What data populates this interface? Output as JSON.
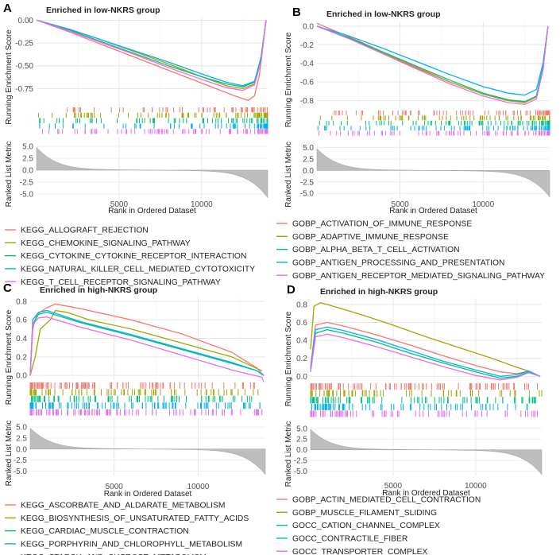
{
  "figure": {
    "x_axis_label": "Rank in Ordered Dataset",
    "es_axis_label": "Running Enrichment Score",
    "metric_axis_label": "Ranked List Metric",
    "metric_ticks": [
      "5.0",
      "2.5",
      "0.0",
      "-2.5",
      "-5.0"
    ],
    "x_ticks": [
      "5000",
      "10000"
    ]
  },
  "panels": [
    {
      "letter": "A",
      "title": "Enriched in low-NKRS group",
      "es_ticks": [
        "0.00",
        "-0.25",
        "-0.50",
        "-0.75"
      ],
      "legend": [
        {
          "label": "KEGG_ALLOGRAFT_REJECTION",
          "color": "#F8766D"
        },
        {
          "label": "KEGG_CHEMOKINE_SIGNALING_PATHWAY",
          "color": "#A3A500"
        },
        {
          "label": "KEGG_CYTOKINE_CYTOKINE_RECEPTOR_INTERACTION",
          "color": "#00BF7D"
        },
        {
          "label": "KEGG_NATURAL_KILLER_CELL_MEDIATED_CYTOTOXICITY",
          "color": "#00B0F6"
        },
        {
          "label": "KEGG_T_CELL_RECEPTOR_SIGNALING_PATHWAY",
          "color": "#E76BF3"
        }
      ]
    },
    {
      "letter": "B",
      "title": "Enriched in low-NKRS group",
      "es_ticks": [
        "0.0",
        "-0.2",
        "-0.4",
        "-0.6",
        "-0.8"
      ],
      "legend": [
        {
          "label": "GOBP_ACTIVATION_OF_IMMUNE_RESPONSE",
          "color": "#F8766D"
        },
        {
          "label": "GOBP_ADAPTIVE_IMMUNE_RESPONSE",
          "color": "#A3A500"
        },
        {
          "label": "GOBP_ALPHA_BETA_T_CELL_ACTIVATION",
          "color": "#00BF7D"
        },
        {
          "label": "GOBP_ANTIGEN_PROCESSING_AND_PRESENTATION",
          "color": "#00B0F6"
        },
        {
          "label": "GOBP_ANTIGEN_RECEPTOR_MEDIATED_SIGNALING_PATHWAY",
          "color": "#E76BF3"
        }
      ]
    },
    {
      "letter": "C",
      "title": "Enriched in high-NKRS group",
      "es_ticks": [
        "0.8",
        "0.6",
        "0.4",
        "0.2",
        "0.0"
      ],
      "legend": [
        {
          "label": "KEGG_ASCORBATE_AND_ALDARATE_METABOLISM",
          "color": "#F8766D"
        },
        {
          "label": "KEGG_BIOSYNTHESIS_OF_UNSATURATED_FATTY_ACIDS",
          "color": "#A3A500"
        },
        {
          "label": "KEGG_CARDIAC_MUSCLE_CONTRACTION",
          "color": "#00BF7D"
        },
        {
          "label": "KEGG_PORPHYRIN_AND_CHLOROPHYLL_METABOLISM",
          "color": "#00B0F6"
        },
        {
          "label": "KEGG_STARCH_AND_SUCROSE_METABOLISM",
          "color": "#E76BF3"
        }
      ]
    },
    {
      "letter": "D",
      "title": "Enriched in high-NKRS group",
      "es_ticks": [
        "0.8",
        "0.6",
        "0.4",
        "0.2",
        "0.0"
      ],
      "legend": [
        {
          "label": "GOBP_ACTIN_MEDIATED_CELL_CONTRACTION",
          "color": "#F8766D"
        },
        {
          "label": "GOBP_MUSCLE_FILAMENT_SLIDING",
          "color": "#A3A500"
        },
        {
          "label": "GOCC_CATION_CHANNEL_COMPLEX",
          "color": "#00BF7D"
        },
        {
          "label": "GOCC_CONTRACTILE_FIBER",
          "color": "#00B0F6"
        },
        {
          "label": "GOCC_TRANSPORTER_COMPLEX",
          "color": "#E76BF3"
        }
      ]
    }
  ],
  "chart_data": [
    {
      "type": "line",
      "panel": "A",
      "title": "Enriched in low-NKRS group",
      "xlabel": "Rank in Ordered Dataset",
      "ylabel": "Running Enrichment Score",
      "xlim": [
        0,
        14000
      ],
      "ylim": [
        -0.93,
        0.03
      ],
      "metric_ylim": [
        -6,
        7
      ],
      "series": [
        {
          "name": "KEGG_ALLOGRAFT_REJECTION",
          "x": [
            0,
            2000,
            4000,
            6000,
            8000,
            10000,
            12000,
            12800,
            13200,
            13500,
            13700,
            13900
          ],
          "y": [
            0,
            -0.13,
            -0.27,
            -0.41,
            -0.55,
            -0.69,
            -0.83,
            -0.88,
            -0.83,
            -0.6,
            -0.3,
            0
          ]
        },
        {
          "name": "KEGG_CHEMOKINE_SIGNALING_PATHWAY",
          "x": [
            0,
            2000,
            4000,
            6000,
            8000,
            10000,
            11500,
            12500,
            13200,
            13600,
            13900
          ],
          "y": [
            0,
            -0.1,
            -0.22,
            -0.35,
            -0.48,
            -0.62,
            -0.72,
            -0.75,
            -0.7,
            -0.45,
            0
          ]
        },
        {
          "name": "KEGG_CYTOKINE_CYTOKINE_RECEPTOR_INTERACTION",
          "x": [
            0,
            2000,
            4000,
            6000,
            8000,
            10000,
            11500,
            12500,
            13200,
            13600,
            13900
          ],
          "y": [
            0,
            -0.11,
            -0.24,
            -0.37,
            -0.5,
            -0.62,
            -0.7,
            -0.73,
            -0.68,
            -0.4,
            0
          ]
        },
        {
          "name": "KEGG_NATURAL_KILLER_CELL_MEDIATED_CYTOTOXICITY",
          "x": [
            0,
            2000,
            4000,
            6000,
            8000,
            10000,
            11500,
            12500,
            13200,
            13600,
            13900
          ],
          "y": [
            0,
            -0.1,
            -0.22,
            -0.34,
            -0.46,
            -0.59,
            -0.68,
            -0.72,
            -0.67,
            -0.42,
            0
          ]
        },
        {
          "name": "KEGG_T_CELL_RECEPTOR_SIGNALING_PATHWAY",
          "x": [
            0,
            2000,
            4000,
            6000,
            8000,
            10000,
            11500,
            12500,
            13200,
            13600,
            13900
          ],
          "y": [
            0,
            -0.12,
            -0.25,
            -0.38,
            -0.52,
            -0.65,
            -0.74,
            -0.77,
            -0.71,
            -0.45,
            0
          ]
        }
      ]
    },
    {
      "type": "line",
      "panel": "B",
      "title": "Enriched in low-NKRS group",
      "xlabel": "Rank in Ordered Dataset",
      "ylabel": "Running Enrichment Score",
      "xlim": [
        0,
        14000
      ],
      "ylim": [
        -0.88,
        0.05
      ],
      "metric_ylim": [
        -6,
        7
      ],
      "series": [
        {
          "name": "GOBP_ACTIVATION_OF_IMMUNE_RESPONSE",
          "x": [
            0,
            2000,
            4000,
            6000,
            8000,
            10000,
            11500,
            12500,
            13200,
            13600,
            13900
          ],
          "y": [
            0.03,
            -0.12,
            -0.28,
            -0.44,
            -0.6,
            -0.73,
            -0.8,
            -0.82,
            -0.75,
            -0.45,
            0
          ]
        },
        {
          "name": "GOBP_ADAPTIVE_IMMUNE_RESPONSE",
          "x": [
            0,
            2000,
            4000,
            6000,
            8000,
            10000,
            11500,
            12500,
            13200,
            13600,
            13900
          ],
          "y": [
            0,
            -0.14,
            -0.29,
            -0.45,
            -0.6,
            -0.73,
            -0.8,
            -0.82,
            -0.76,
            -0.46,
            0
          ]
        },
        {
          "name": "GOBP_ALPHA_BETA_T_CELL_ACTIVATION",
          "x": [
            0,
            2000,
            4000,
            6000,
            8000,
            10000,
            11500,
            12500,
            13200,
            13600,
            13900
          ],
          "y": [
            0,
            -0.13,
            -0.28,
            -0.43,
            -0.58,
            -0.72,
            -0.79,
            -0.81,
            -0.75,
            -0.44,
            0
          ]
        },
        {
          "name": "GOBP_ANTIGEN_PROCESSING_AND_PRESENTATION",
          "x": [
            0,
            2000,
            4000,
            6000,
            8000,
            10000,
            11500,
            12500,
            13200,
            13600,
            13900
          ],
          "y": [
            0,
            -0.11,
            -0.24,
            -0.38,
            -0.52,
            -0.65,
            -0.72,
            -0.74,
            -0.68,
            -0.4,
            0
          ]
        },
        {
          "name": "GOBP_ANTIGEN_RECEPTOR_MEDIATED_SIGNALING_PATHWAY",
          "x": [
            0,
            2000,
            4000,
            6000,
            8000,
            10000,
            11500,
            12500,
            13200,
            13600,
            13900
          ],
          "y": [
            0,
            -0.14,
            -0.3,
            -0.46,
            -0.62,
            -0.75,
            -0.82,
            -0.84,
            -0.78,
            -0.47,
            0
          ]
        }
      ]
    },
    {
      "type": "line",
      "panel": "C",
      "title": "Enriched in high-NKRS group",
      "xlabel": "Rank in Ordered Dataset",
      "ylabel": "Running Enrichment Score",
      "xlim": [
        0,
        14000
      ],
      "ylim": [
        -0.05,
        0.85
      ],
      "metric_ylim": [
        -6,
        7
      ],
      "series": [
        {
          "name": "KEGG_ASCORBATE_AND_ALDARATE_METABOLISM",
          "x": [
            0,
            150,
            400,
            1000,
            1500,
            3000,
            6000,
            9000,
            12000,
            13500,
            13900
          ],
          "y": [
            0,
            0.5,
            0.66,
            0.73,
            0.77,
            0.72,
            0.6,
            0.45,
            0.25,
            0.08,
            0
          ]
        },
        {
          "name": "KEGG_BIOSYNTHESIS_OF_UNSATURATED_FATTY_ACIDS",
          "x": [
            0,
            300,
            600,
            1200,
            1500,
            2200,
            3500,
            6000,
            9000,
            12000,
            13800
          ],
          "y": [
            0,
            0.2,
            0.5,
            0.6,
            0.7,
            0.68,
            0.6,
            0.5,
            0.35,
            0.2,
            0.05
          ]
        },
        {
          "name": "KEGG_CARDIAC_MUSCLE_CONTRACTION",
          "x": [
            0,
            150,
            500,
            1000,
            3000,
            6000,
            9000,
            12000,
            13500,
            13900
          ],
          "y": [
            0,
            0.55,
            0.66,
            0.68,
            0.57,
            0.43,
            0.28,
            0.13,
            0.05,
            0
          ]
        },
        {
          "name": "KEGG_PORPHYRIN_AND_CHLOROPHYLL_METABOLISM",
          "x": [
            0,
            150,
            500,
            1000,
            3000,
            6000,
            9000,
            12000,
            13500,
            13900
          ],
          "y": [
            0,
            0.6,
            0.68,
            0.7,
            0.58,
            0.44,
            0.29,
            0.14,
            0.05,
            0
          ]
        },
        {
          "name": "KEGG_STARCH_AND_SUCROSE_METABOLISM",
          "x": [
            0,
            150,
            500,
            1000,
            3000,
            6000,
            9000,
            12000,
            13800,
            13900
          ],
          "y": [
            0,
            0.55,
            0.62,
            0.63,
            0.52,
            0.38,
            0.22,
            0.06,
            -0.02,
            -0.07
          ]
        }
      ]
    },
    {
      "type": "line",
      "panel": "D",
      "title": "Enriched in high-NKRS group",
      "xlabel": "Rank in Ordered Dataset",
      "ylabel": "Running Enrichment Score",
      "xlim": [
        0,
        14000
      ],
      "ylim": [
        -0.05,
        0.87
      ],
      "metric_ylim": [
        -6,
        7
      ],
      "series": [
        {
          "name": "GOBP_ACTIN_MEDIATED_CELL_CONTRACTION",
          "x": [
            0,
            300,
            1000,
            2000,
            4000,
            6000,
            8000,
            10000,
            11500,
            12500,
            13200,
            13900
          ],
          "y": [
            0.1,
            0.57,
            0.6,
            0.56,
            0.46,
            0.35,
            0.23,
            0.12,
            0.05,
            0.03,
            0.06,
            0
          ]
        },
        {
          "name": "GOBP_MUSCLE_FILAMENT_SLIDING",
          "x": [
            0,
            200,
            600,
            1000,
            3000,
            5000,
            7000,
            9000,
            11000,
            12500,
            13200,
            13900
          ],
          "y": [
            0.3,
            0.78,
            0.82,
            0.8,
            0.69,
            0.57,
            0.44,
            0.32,
            0.2,
            0.1,
            0.06,
            0
          ]
        },
        {
          "name": "GOCC_CATION_CHANNEL_COMPLEX",
          "x": [
            0,
            300,
            1000,
            2000,
            4000,
            6000,
            8000,
            10000,
            11500,
            12500,
            13200,
            13900
          ],
          "y": [
            0.05,
            0.48,
            0.52,
            0.48,
            0.38,
            0.26,
            0.15,
            0.05,
            -0.02,
            0,
            0.05,
            0
          ]
        },
        {
          "name": "GOCC_CONTRACTILE_FIBER",
          "x": [
            0,
            300,
            1000,
            2000,
            4000,
            6000,
            8000,
            10000,
            11500,
            12500,
            13200,
            13900
          ],
          "y": [
            0.08,
            0.52,
            0.55,
            0.51,
            0.41,
            0.29,
            0.17,
            0.07,
            0,
            0.02,
            0.06,
            0
          ]
        },
        {
          "name": "GOCC_TRANSPORTER_COMPLEX",
          "x": [
            0,
            300,
            1000,
            2000,
            4000,
            6000,
            8000,
            10000,
            11500,
            12500,
            13200,
            13900
          ],
          "y": [
            0.05,
            0.44,
            0.47,
            0.43,
            0.33,
            0.22,
            0.11,
            0.01,
            -0.04,
            -0.01,
            0.04,
            0
          ]
        }
      ]
    }
  ]
}
